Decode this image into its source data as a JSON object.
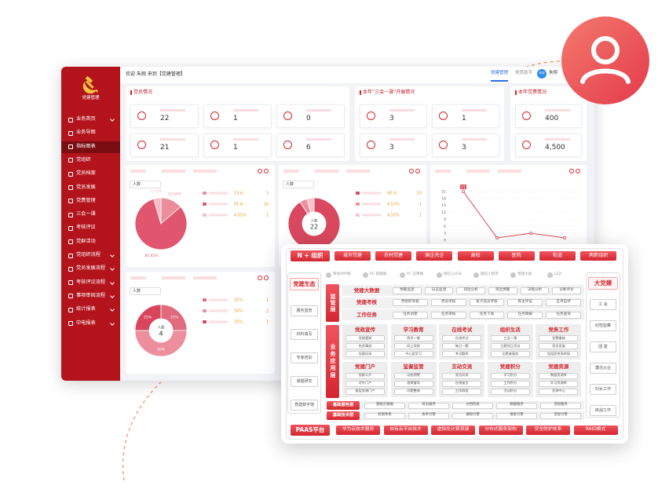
{
  "sidebar": {
    "logo": "党建管理",
    "menu": [
      "业务首页",
      "业务导图",
      "指标图表",
      "党组织",
      "党员档案",
      "党员发展",
      "党费管理",
      "三会一课",
      "考核评议",
      "党群活动",
      "党组织流程",
      "党员发展流程",
      "考核评议流程",
      "事项审阅流程",
      "统计报表",
      "中电报表"
    ]
  },
  "topbar": {
    "welcome": "欢迎 朱翔 来到【党建管理】",
    "tabs": [
      "党建管理",
      "党员助手"
    ],
    "avatar": "朱翔",
    "user": "朱翔"
  },
  "stats": [
    {
      "title": "党员情况",
      "values": [
        22,
        1,
        0,
        21,
        1,
        6
      ]
    },
    {
      "title": "本年“三会一课”开展情况",
      "values": [
        3,
        1,
        3,
        3
      ]
    },
    {
      "title": "本年党费情况",
      "values": [
        400,
        {
          "value": 4500,
          "label": "4,500"
        }
      ]
    }
  ],
  "charts": [
    {
      "type": "pie",
      "select": "人数",
      "slices": [
        {
          "value": 13.64,
          "label": "13.64%",
          "color": "#eb8d9b"
        },
        {
          "value": 81.82,
          "label": "81.82%",
          "color": "#e0566e"
        },
        {
          "value": 4.55,
          "label": "4.55%",
          "color": "#f4bcc4"
        }
      ],
      "legend": [
        {
          "label": "13.6...",
          "count": 3
        },
        {
          "label": "81.8...",
          "count": 18
        },
        {
          "label": "4.55%",
          "count": 1
        }
      ]
    },
    {
      "type": "donut",
      "select": "人数",
      "slices": [
        {
          "value": 90.91,
          "color": "#d9485f"
        },
        {
          "value": 4.55,
          "color": "#ee8d9c"
        },
        {
          "value": 4.55,
          "color": "#f6c3ca"
        }
      ],
      "legend": [
        {
          "label": "90.9...",
          "count": 20
        },
        {
          "label": "4.55%",
          "count": 1
        },
        {
          "label": "4.55%",
          "count": 1
        }
      ],
      "center": {
        "label": "人数",
        "value": 22
      }
    },
    {
      "type": "line",
      "ylim": [
        0,
        21
      ],
      "yticks": [
        0,
        3,
        6,
        9,
        12,
        15,
        18,
        21
      ],
      "values": [
        21,
        1,
        3,
        1
      ],
      "color": "#e04a5a"
    },
    {
      "type": "donut",
      "select": "人数",
      "slices": [
        {
          "value": 25,
          "label": "25%",
          "color": "#e26a7d"
        },
        {
          "value": 50,
          "label": "50%",
          "color": "#ec8e9c"
        },
        {
          "value": 25,
          "label": "25%",
          "color": "#d8465d"
        }
      ],
      "legend": [
        {
          "label": "25%",
          "count": 1
        },
        {
          "label": "50%",
          "count": 2
        },
        {
          "label": "25%",
          "count": 1
        }
      ],
      "center": {
        "label": "人数",
        "value": 4
      }
    }
  ],
  "arch": {
    "top": {
      "head": "N + 组织",
      "items": [
        "城市党建",
        "农村党建",
        "国企央企",
        "高校",
        "医院",
        "街道",
        "两新组织"
      ]
    },
    "left": {
      "head": "党建生态",
      "items": [
        "服务监管",
        "材料填写",
        "专家培训",
        "课题研究",
        "党建数字馆"
      ]
    },
    "right": {
      "head": "大党建",
      "items": [
        "工 会",
        "纪检监察",
        "团 建",
        "廉洁从业",
        "妇女工作",
        "统战工作"
      ]
    },
    "channels": [
      "移动APP端",
      "PC 管理端",
      "PC 应用端",
      "微信公众号",
      "微信小程序",
      "党建大屏",
      "LED"
    ],
    "supervise": {
      "head": "监管层",
      "rows": [
        {
          "name": "党建大数据",
          "items": [
            "预警监测",
            "日志监测",
            "风险分析",
            "风险预警",
            "决策分析",
            "诊断评价"
          ]
        },
        {
          "name": "党建考核",
          "items": [
            "党组织考核",
            "党员考核",
            "班子成员考核",
            "民主评议",
            "互评自评"
          ]
        },
        {
          "name": "工作任务",
          "items": [
            "任务创建",
            "任务审核",
            "任务下发",
            "任务填报",
            "任务查询"
          ]
        }
      ]
    },
    "apply": {
      "head": "业务应用层",
      "groups": [
        {
          "name": "党政宣传",
          "items": [
            "党政要闻",
            "先进事迹",
            "党建风采"
          ]
        },
        {
          "name": "学习教育",
          "items": [
            "两学一做",
            "网上党校",
            "中心组学习"
          ]
        },
        {
          "name": "在线考试",
          "items": [
            "在线考试",
            "每日一题",
            "考试题库"
          ]
        },
        {
          "name": "组织生活",
          "items": [
            "三会一课",
            "主题党日活动",
            "志愿者服务"
          ]
        },
        {
          "name": "党务工作",
          "items": [
            "党费缴纳",
            "党员发展",
            "党组织关系转接"
          ]
        },
        {
          "name": "党建门户",
          "items": [
            "党群公开",
            "对外门户",
            "基层党建门户"
          ]
        },
        {
          "name": "监督监管",
          "items": [
            "动态预警",
            "巡察督导",
            "问题整改"
          ]
        },
        {
          "name": "互动交流",
          "items": [
            "党员风采",
            "在线留言",
            "工作群组"
          ]
        },
        {
          "name": "党建积分",
          "items": [
            "学习积分",
            "工作积分",
            "活动积分"
          ]
        },
        {
          "name": "党建资源",
          "items": [
            "数据资源库",
            "学习资源库",
            "资源中心"
          ]
        }
      ]
    },
    "base": [
      {
        "name": "基础服务层",
        "items": [
          "基础全数据",
          "日志服务",
          "文档检索",
          "数据服务",
          "流程服务"
        ]
      },
      {
        "name": "基础技术层",
        "items": [
          "权限体系",
          "表单引擎",
          "通知引擎",
          "搜索引擎",
          "流程引擎"
        ]
      }
    ],
    "bottom": {
      "head": "PAAS平台",
      "items": [
        "华为云技术服务",
        "自有云平台技术",
        "虚拟化计算资源",
        "分布式服务架构",
        "安全防护体系",
        "RAID模式"
      ]
    }
  }
}
